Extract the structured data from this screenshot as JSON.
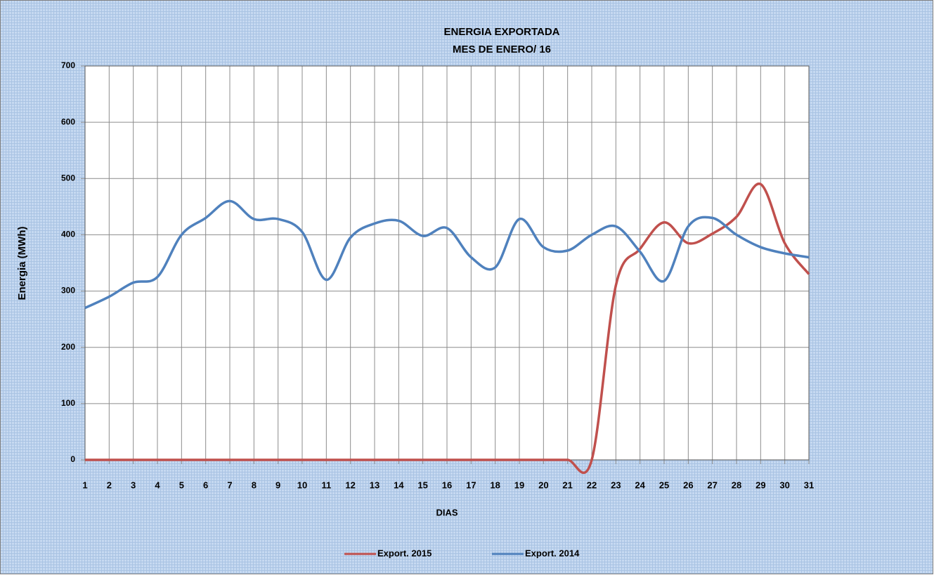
{
  "chart_data": {
    "type": "line",
    "title": "ENERGIA EXPORTADA",
    "subtitle": "MES DE ENERO/ 16",
    "x_label": "DIAS",
    "y_label": "Energia (MWh)",
    "x": [
      1,
      2,
      3,
      4,
      5,
      6,
      7,
      8,
      9,
      10,
      11,
      12,
      13,
      14,
      15,
      16,
      17,
      18,
      19,
      20,
      21,
      22,
      23,
      24,
      25,
      26,
      27,
      28,
      29,
      30,
      31
    ],
    "xlim": [
      1,
      31
    ],
    "xticks": [
      1,
      2,
      3,
      4,
      5,
      6,
      7,
      8,
      9,
      10,
      11,
      12,
      13,
      14,
      15,
      16,
      17,
      18,
      19,
      20,
      21,
      22,
      23,
      24,
      25,
      26,
      27,
      28,
      29,
      30,
      31
    ],
    "ylim": [
      0,
      700
    ],
    "yticks": [
      0,
      100,
      200,
      300,
      400,
      500,
      600,
      700
    ],
    "grid": true,
    "legend": "bottom",
    "series": [
      {
        "name": "Export. 2015",
        "color": "#c0504d",
        "values": [
          0,
          0,
          0,
          0,
          0,
          0,
          0,
          0,
          0,
          0,
          0,
          0,
          0,
          0,
          0,
          0,
          0,
          0,
          0,
          0,
          0,
          0,
          310,
          375,
          422,
          385,
          402,
          432,
          490,
          385,
          330
        ]
      },
      {
        "name": "Export. 2014",
        "color": "#4f81bd",
        "values": [
          270,
          290,
          315,
          325,
          400,
          430,
          460,
          428,
          428,
          405,
          320,
          395,
          420,
          425,
          398,
          412,
          360,
          342,
          428,
          378,
          372,
          400,
          415,
          370,
          318,
          415,
          430,
          400,
          378,
          367,
          360
        ]
      }
    ]
  }
}
